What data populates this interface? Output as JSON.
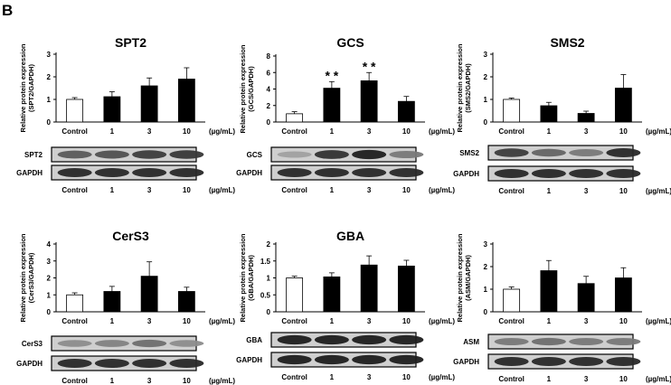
{
  "figure": {
    "panel_label": "B"
  },
  "chart_data": [
    {
      "type": "bar",
      "title": "SPT2",
      "ylabel": [
        "Relative protein expression",
        "(SPT2/GAPDH)"
      ],
      "categories": [
        "Control",
        "1",
        "3",
        "10"
      ],
      "unit_label": "(µg/mL)",
      "values": [
        1.0,
        1.12,
        1.6,
        1.9
      ],
      "errors": [
        0.08,
        0.22,
        0.35,
        0.5
      ],
      "ylim": [
        0,
        3
      ],
      "yticks": [
        "0",
        "1",
        "2",
        "3"
      ],
      "significance": [
        "",
        "",
        "",
        ""
      ],
      "blots": [
        {
          "label": "SPT2",
          "intensities": [
            0.55,
            0.6,
            0.7,
            0.72
          ]
        },
        {
          "label": "GAPDH",
          "intensities": [
            0.8,
            0.8,
            0.8,
            0.8
          ]
        }
      ],
      "bar_colors": {
        "control": "#ffffff",
        "treated": "#000000"
      }
    },
    {
      "type": "bar",
      "title": "GCS",
      "ylabel": [
        "Relative protein expression",
        "(GCS/GAPDH)"
      ],
      "categories": [
        "Control",
        "1",
        "3",
        "10"
      ],
      "unit_label": "(µg/mL)",
      "values": [
        1.0,
        4.1,
        5.0,
        2.5
      ],
      "errors": [
        0.25,
        0.8,
        1.0,
        0.6
      ],
      "ylim": [
        0,
        8
      ],
      "yticks": [
        "0",
        "2",
        "4",
        "6",
        "8"
      ],
      "significance": [
        "",
        "* *",
        "* *",
        ""
      ],
      "blots": [
        {
          "label": "GCS",
          "intensities": [
            0.2,
            0.75,
            0.85,
            0.4
          ]
        },
        {
          "label": "GAPDH",
          "intensities": [
            0.8,
            0.8,
            0.8,
            0.8
          ]
        }
      ],
      "bar_colors": {
        "control": "#ffffff",
        "treated": "#000000"
      }
    },
    {
      "type": "bar",
      "title": "SMS2",
      "ylabel": [
        "Relative protein expression",
        "(SMS2/GAPDH)"
      ],
      "categories": [
        "Control",
        "1",
        "3",
        "10"
      ],
      "unit_label": "(µg/mL)",
      "values": [
        1.0,
        0.72,
        0.38,
        1.5
      ],
      "errors": [
        0.06,
        0.15,
        0.1,
        0.6
      ],
      "ylim": [
        0,
        3
      ],
      "yticks": [
        "0",
        "1",
        "2",
        "3"
      ],
      "significance": [
        "",
        "",
        "",
        ""
      ],
      "blots": [
        {
          "label": "SMS2",
          "intensities": [
            0.7,
            0.5,
            0.4,
            0.8
          ]
        },
        {
          "label": "GAPDH",
          "intensities": [
            0.8,
            0.8,
            0.8,
            0.8
          ]
        }
      ],
      "bar_colors": {
        "control": "#ffffff",
        "treated": "#000000"
      }
    },
    {
      "type": "bar",
      "title": "CerS3",
      "ylabel": [
        "Relative protein expression",
        "(CerS3/GAPDH)"
      ],
      "categories": [
        "Control",
        "1",
        "3",
        "10"
      ],
      "unit_label": "(µg/mL)",
      "values": [
        1.0,
        1.2,
        2.1,
        1.2
      ],
      "errors": [
        0.12,
        0.3,
        0.85,
        0.25
      ],
      "ylim": [
        0,
        4
      ],
      "yticks": [
        "0",
        "1",
        "2",
        "3",
        "4"
      ],
      "significance": [
        "",
        "",
        "",
        ""
      ],
      "blots": [
        {
          "label": "CerS3",
          "intensities": [
            0.3,
            0.35,
            0.45,
            0.3
          ]
        },
        {
          "label": "GAPDH",
          "intensities": [
            0.8,
            0.8,
            0.8,
            0.8
          ]
        }
      ],
      "bar_colors": {
        "control": "#ffffff",
        "treated": "#000000"
      }
    },
    {
      "type": "bar",
      "title": "GBA",
      "ylabel": [
        "Relative protein expression",
        "(GBA/GAPDH)"
      ],
      "categories": [
        "Control",
        "1",
        "3",
        "10"
      ],
      "unit_label": "(µg/mL)",
      "values": [
        1.0,
        1.03,
        1.38,
        1.35
      ],
      "errors": [
        0.05,
        0.12,
        0.27,
        0.17
      ],
      "ylim": [
        0,
        2
      ],
      "yticks": [
        "0",
        "0.5",
        "1",
        "1.5",
        "2"
      ],
      "significance": [
        "",
        "",
        "",
        ""
      ],
      "blots": [
        {
          "label": "GBA",
          "intensities": [
            0.85,
            0.85,
            0.85,
            0.85
          ]
        },
        {
          "label": "GAPDH",
          "intensities": [
            0.85,
            0.85,
            0.85,
            0.85
          ]
        }
      ],
      "bar_colors": {
        "control": "#ffffff",
        "treated": "#000000"
      }
    },
    {
      "type": "bar",
      "title": "",
      "ylabel": [
        "Relative protein expression",
        "(ASM/GAPDH)"
      ],
      "categories": [
        "Control",
        "1",
        "3",
        "10"
      ],
      "unit_label": "(µg/mL)",
      "values": [
        1.0,
        1.82,
        1.25,
        1.5
      ],
      "errors": [
        0.1,
        0.45,
        0.32,
        0.45
      ],
      "ylim": [
        0,
        3
      ],
      "yticks": [
        "0",
        "1",
        "2",
        "3"
      ],
      "significance": [
        "",
        "",
        "",
        ""
      ],
      "blots": [
        {
          "label": "ASM",
          "intensities": [
            0.4,
            0.45,
            0.4,
            0.4
          ]
        },
        {
          "label": "GAPDH",
          "intensities": [
            0.8,
            0.8,
            0.8,
            0.8
          ]
        }
      ],
      "bar_colors": {
        "control": "#ffffff",
        "treated": "#000000"
      }
    }
  ]
}
